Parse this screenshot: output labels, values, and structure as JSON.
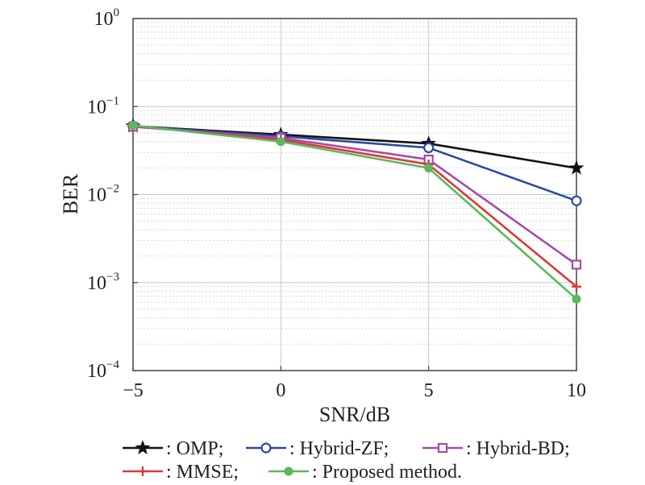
{
  "chart_data": {
    "type": "line",
    "xlabel": "SNR/dB",
    "ylabel": "BER",
    "yscale": "log",
    "xlim": [
      -5,
      10
    ],
    "ylim": [
      0.0001,
      1
    ],
    "grid": true,
    "x": [
      -5,
      0,
      5,
      10
    ],
    "xticks": [
      {
        "value": -5,
        "label": "−5"
      },
      {
        "value": 0,
        "label": "0"
      },
      {
        "value": 5,
        "label": "5"
      },
      {
        "value": 10,
        "label": "10"
      }
    ],
    "yticks": [
      {
        "value": 1,
        "base": "10",
        "exp": "0"
      },
      {
        "value": 0.1,
        "base": "10",
        "exp": "−1"
      },
      {
        "value": 0.01,
        "base": "10",
        "exp": "−2"
      },
      {
        "value": 0.001,
        "base": "10",
        "exp": "−3"
      },
      {
        "value": 0.0001,
        "base": "10",
        "exp": "−4"
      }
    ],
    "series": [
      {
        "name": ": OMP;",
        "color": "#111111",
        "marker": "star",
        "values": [
          0.06,
          0.048,
          0.038,
          0.02
        ]
      },
      {
        "name": ": Hybrid-ZF;",
        "color": "#2b4ba0",
        "marker": "circle",
        "values": [
          0.06,
          0.046,
          0.034,
          0.0085
        ]
      },
      {
        "name": ": Hybrid-BD;",
        "color": "#a64aa8",
        "marker": "square",
        "values": [
          0.059,
          0.044,
          0.025,
          0.0016
        ]
      },
      {
        "name": ": MMSE;",
        "color": "#d93a3a",
        "marker": "plus",
        "values": [
          0.06,
          0.042,
          0.022,
          0.0009
        ]
      },
      {
        "name": ": Proposed method.",
        "color": "#5cb85c",
        "marker": "dot",
        "values": [
          0.061,
          0.04,
          0.02,
          0.00065
        ]
      }
    ],
    "legend_position": "bottom"
  }
}
